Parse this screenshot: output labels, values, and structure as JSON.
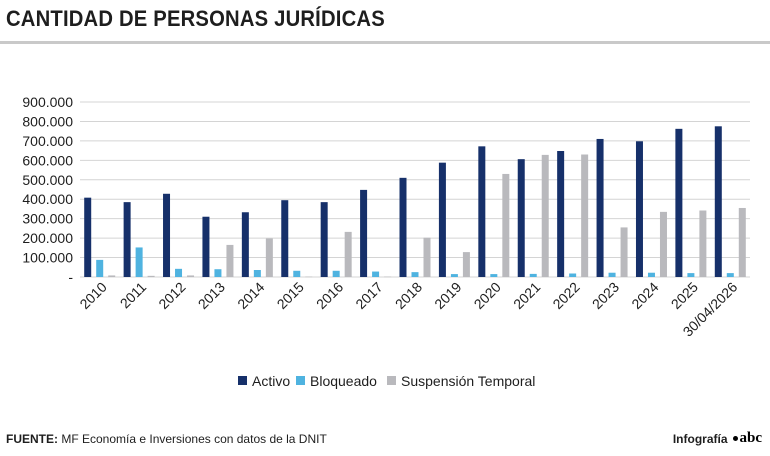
{
  "header": {
    "title": "CANTIDAD DE PERSONAS JURÍDICAS"
  },
  "footer": {
    "source_label": "FUENTE:",
    "source_text": "MF Economía e Inversiones con datos de la DNIT",
    "credit": "Infografía",
    "brand": "abc"
  },
  "chart_data": {
    "type": "bar",
    "categories": [
      "2010",
      "2011",
      "2012",
      "2013",
      "2014",
      "2015",
      "2016",
      "2017",
      "2018",
      "2019",
      "2020",
      "2021",
      "2022",
      "2023",
      "2024",
      "2025",
      "30/04/2026"
    ],
    "y_tick_labels": [
      "-",
      "100.000",
      "200.000",
      "300.000",
      "400.000",
      "500.000",
      "600.000",
      "700.000",
      "800.000",
      "900.000"
    ],
    "ylim": [
      0,
      900000
    ],
    "grid": true,
    "legend_position": "bottom",
    "series": [
      {
        "name": "Activo",
        "color": "#16306a",
        "values": [
          408000,
          385000,
          428000,
          310000,
          333000,
          395000,
          385000,
          448000,
          510000,
          588000,
          672000,
          606000,
          648000,
          710000,
          698000,
          762000,
          775000
        ]
      },
      {
        "name": "Bloqueado",
        "color": "#4fb3e0",
        "values": [
          88000,
          152000,
          42000,
          40000,
          36000,
          32000,
          32000,
          28000,
          25000,
          15000,
          15000,
          16000,
          18000,
          22000,
          22000,
          20000,
          20000
        ]
      },
      {
        "name": "Suspensión Temporal",
        "color": "#b9b9bd",
        "values": [
          8000,
          6000,
          8000,
          165000,
          198000,
          2000,
          232000,
          2000,
          202000,
          128000,
          530000,
          628000,
          630000,
          255000,
          335000,
          342000,
          355000
        ]
      }
    ]
  }
}
